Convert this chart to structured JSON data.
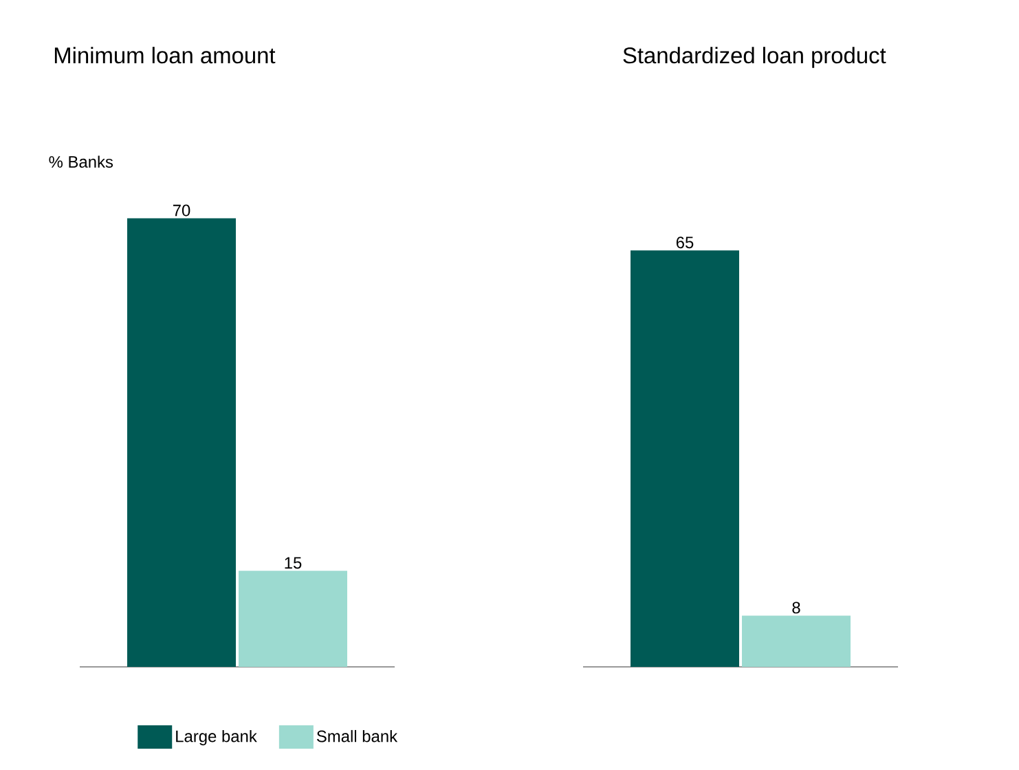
{
  "chart_data": [
    {
      "type": "bar",
      "title": "Minimum loan amount",
      "ylabel": "% Banks",
      "categories": [
        null
      ],
      "data_labels": true,
      "legend": "bottom",
      "series": [
        {
          "name": "Large bank",
          "color": "#005a55",
          "values": [
            70
          ]
        },
        {
          "name": "Small bank",
          "color": "#9cdad0",
          "values": [
            15
          ]
        }
      ]
    },
    {
      "type": "bar",
      "title": "Standardized loan product",
      "categories": [
        null
      ],
      "data_labels": true,
      "series": [
        {
          "color": "#005a55",
          "values": [
            65
          ]
        },
        {
          "color": "#9cdad0",
          "values": [
            8
          ]
        }
      ]
    }
  ]
}
